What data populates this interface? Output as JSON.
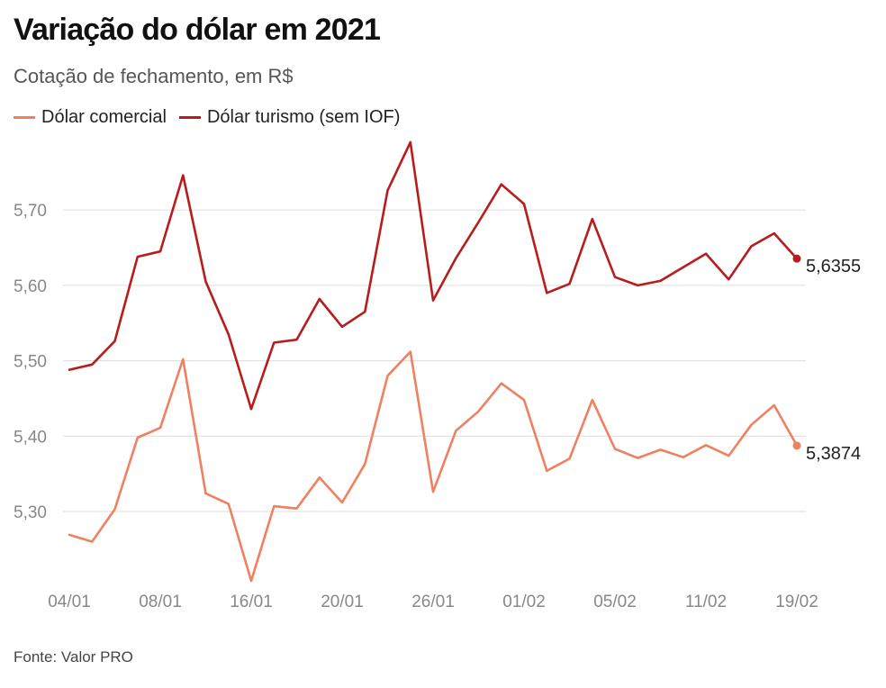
{
  "header": {
    "title": "Variação do dólar em 2021",
    "subtitle": "Cotação de fechamento, em R$"
  },
  "footer": {
    "source": "Fonte: Valor PRO"
  },
  "colors": {
    "comercial": "#ef8060",
    "turismo": "#b81c1c",
    "grid": "#dddddd"
  },
  "chart_data": {
    "type": "line",
    "title": "Variação do dólar em 2021",
    "subtitle": "Cotação de fechamento, em R$",
    "xlabel": "",
    "ylabel": "",
    "ylim": [
      5.2,
      5.8
    ],
    "yticks": [
      5.3,
      5.4,
      5.5,
      5.6,
      5.7
    ],
    "ytick_labels": [
      "5,30",
      "5,40",
      "5,50",
      "5,60",
      "5,70"
    ],
    "xtick_indices": [
      0,
      4,
      8,
      12,
      16,
      20,
      24,
      28,
      32
    ],
    "xtick_labels": [
      "04/01",
      "08/01",
      "16/01",
      "20/01",
      "26/01",
      "01/02",
      "05/02",
      "11/02",
      "19/02"
    ],
    "legend_position": "top-left",
    "grid": true,
    "x_count": 33,
    "series": [
      {
        "name": "Dólar comercial",
        "color": "#ef8060",
        "values": [
          5.269,
          5.26,
          5.303,
          5.398,
          5.411,
          5.502,
          5.324,
          5.31,
          5.208,
          5.307,
          5.304,
          5.345,
          5.312,
          5.363,
          5.48,
          5.512,
          5.326,
          5.407,
          5.433,
          5.47,
          5.448,
          5.354,
          5.37,
          5.448,
          5.383,
          5.371,
          5.382,
          5.372,
          5.388,
          5.374,
          5.415,
          5.441,
          5.3874
        ],
        "end_label": "5,3874"
      },
      {
        "name": "Dólar turismo (sem IOF)",
        "color": "#b81c1c",
        "values": [
          5.488,
          5.495,
          5.526,
          5.638,
          5.645,
          5.746,
          5.605,
          5.535,
          5.436,
          5.524,
          5.528,
          5.582,
          5.545,
          5.565,
          5.726,
          5.79,
          5.58,
          5.636,
          5.684,
          5.734,
          5.708,
          5.59,
          5.602,
          5.688,
          5.611,
          5.6,
          5.606,
          5.624,
          5.642,
          5.608,
          5.652,
          5.669,
          5.6355
        ],
        "end_label": "5,6355"
      }
    ]
  }
}
